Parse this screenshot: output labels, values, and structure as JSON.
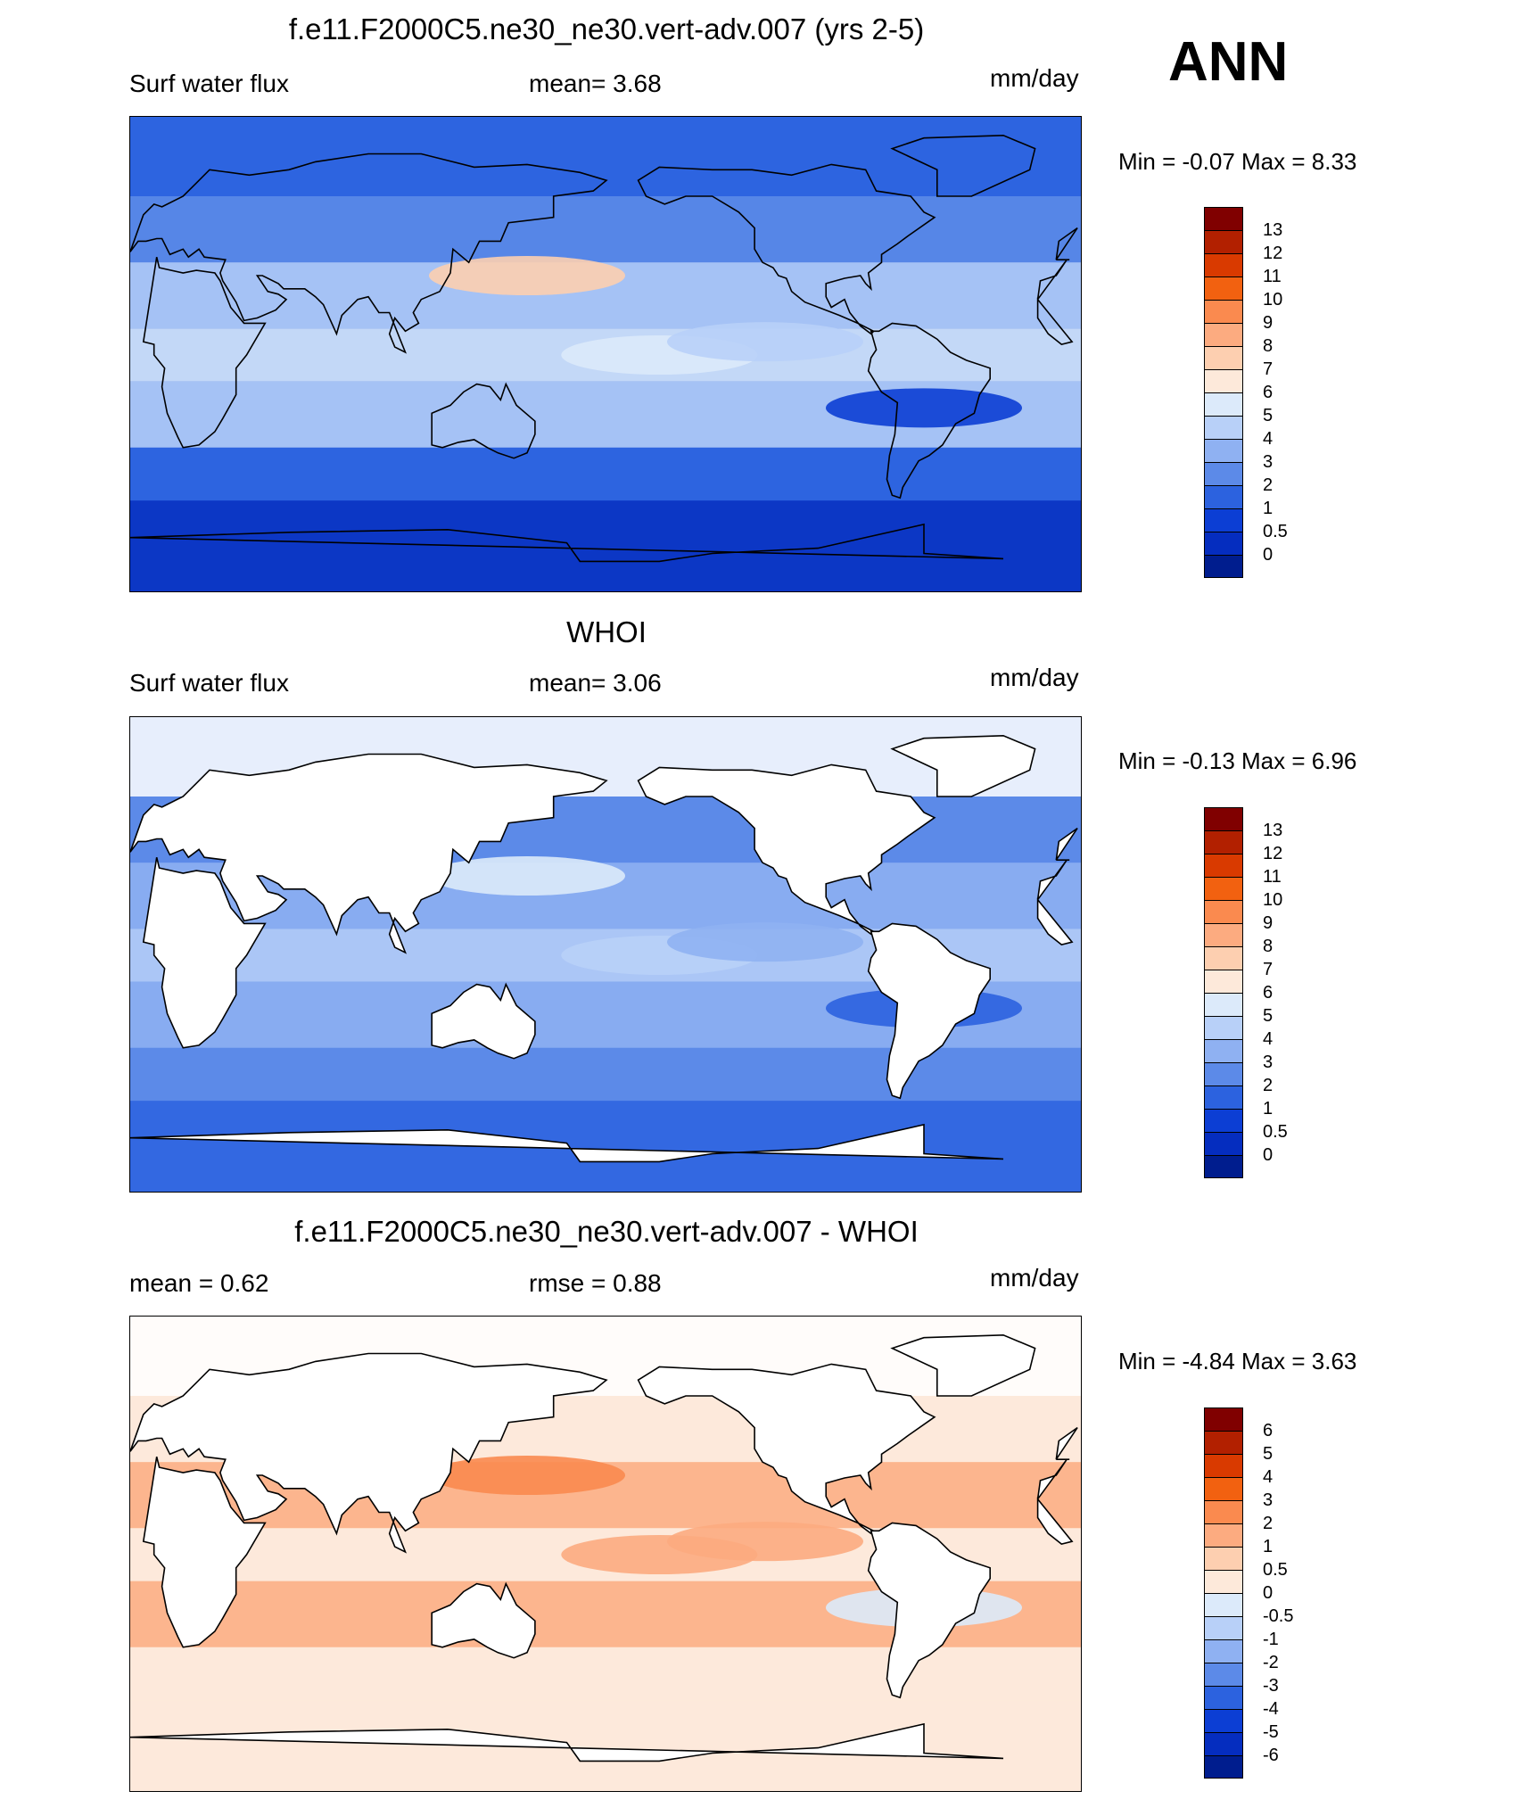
{
  "season": "ANN",
  "panels": [
    {
      "title": "f.e11.F2000C5.ne30_ne30.vert-adv.007 (yrs 2-5)",
      "left_label": "Surf water flux",
      "center_label": "mean=   3.68",
      "units": "mm/day",
      "minmax": "Min =  -0.07 Max =   8.33",
      "levels": [
        "13",
        "12",
        "11",
        "10",
        "9",
        "8",
        "7",
        "6",
        "5",
        "4",
        "3",
        "2",
        "1",
        "0.5",
        "0"
      ],
      "colors": [
        "#800000",
        "#b22000",
        "#d93a00",
        "#f26110",
        "#fa8a4f",
        "#fcab80",
        "#fdcfb0",
        "#fde9da",
        "#dceafa",
        "#b8d0f8",
        "#8fb1f2",
        "#5c8ae8",
        "#2c62df",
        "#0c3ed4",
        "#052dbf",
        "#001d8e"
      ],
      "mean_color": "#3a70e0",
      "blobs": [
        {
          "color": "#dceafa"
        },
        {
          "color": "#b8d0f8"
        },
        {
          "color": "#fdcfb0"
        },
        {
          "color": "#0c3ed4"
        }
      ]
    },
    {
      "title": "WHOI",
      "left_label": "Surf water flux",
      "center_label": "mean=   3.06",
      "units": "mm/day",
      "minmax": "Min =  -0.13 Max =   6.96",
      "levels": [
        "13",
        "12",
        "11",
        "10",
        "9",
        "8",
        "7",
        "6",
        "5",
        "4",
        "3",
        "2",
        "1",
        "0.5",
        "0"
      ],
      "colors": [
        "#800000",
        "#b22000",
        "#d93a00",
        "#f26110",
        "#fa8a4f",
        "#fcab80",
        "#fdcfb0",
        "#fde9da",
        "#dceafa",
        "#b8d0f8",
        "#8fb1f2",
        "#5c8ae8",
        "#2c62df",
        "#0c3ed4",
        "#052dbf",
        "#001d8e"
      ],
      "mean_color": "#5c8ae8",
      "blobs": [
        {
          "color": "#b8d0f8"
        },
        {
          "color": "#8fb1f2"
        },
        {
          "color": "#dceafa"
        },
        {
          "color": "#2c62df"
        }
      ]
    },
    {
      "title": "f.e11.F2000C5.ne30_ne30.vert-adv.007 - WHOI",
      "left_label": "mean =   0.62",
      "center_label": "rmse =   0.88",
      "units": "mm/day",
      "minmax": "Min =  -4.84 Max =   3.63",
      "levels": [
        "6",
        "5",
        "4",
        "3",
        "2",
        "1",
        "0.5",
        "0",
        "-0.5",
        "-1",
        "-2",
        "-3",
        "-4",
        "-5",
        "-6"
      ],
      "colors": [
        "#800000",
        "#b22000",
        "#d93a00",
        "#f26110",
        "#fa8a4f",
        "#fcab80",
        "#fdcfb0",
        "#fde9da",
        "#dceafa",
        "#b8d0f8",
        "#8fb1f2",
        "#5c8ae8",
        "#2c62df",
        "#0c3ed4",
        "#052dbf",
        "#001d8e"
      ],
      "mean_color": "#fde9da",
      "blobs": [
        {
          "color": "#fcab80"
        },
        {
          "color": "#fcab80"
        },
        {
          "color": "#fa8a4f"
        },
        {
          "color": "#dceafa"
        }
      ]
    }
  ]
}
